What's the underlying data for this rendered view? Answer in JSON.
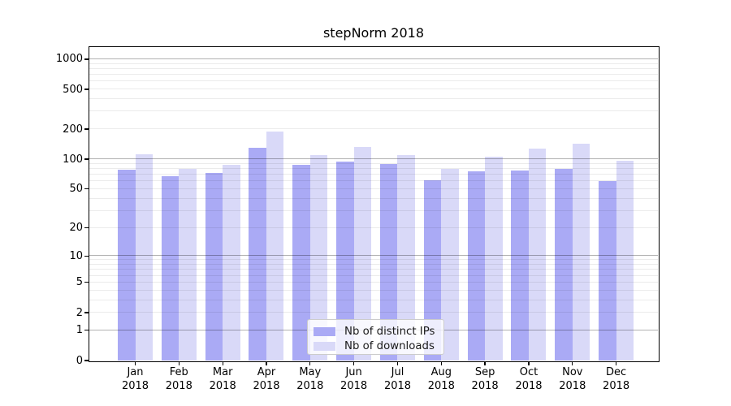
{
  "title": "stepNorm 2018",
  "year": "2018",
  "chart_data": {
    "type": "bar",
    "title": "stepNorm 2018",
    "x_categories": [
      "Jan 2018",
      "Feb 2018",
      "Mar 2018",
      "Apr 2018",
      "May 2018",
      "Jun 2018",
      "Jul 2018",
      "Aug 2018",
      "Sep 2018",
      "Oct 2018",
      "Nov 2018",
      "Dec 2018"
    ],
    "x_tick_months": [
      "Jan",
      "Feb",
      "Mar",
      "Apr",
      "May",
      "Jun",
      "Jul",
      "Aug",
      "Sep",
      "Oct",
      "Nov",
      "Dec"
    ],
    "series": [
      {
        "name": "Nb of distinct IPs",
        "color": "#aaaaf5",
        "values": [
          78,
          67,
          73,
          130,
          88,
          94,
          89,
          61,
          75,
          77,
          80,
          60
        ]
      },
      {
        "name": "Nb of downloads",
        "color": "#d9d9f8",
        "values": [
          113,
          80,
          88,
          190,
          111,
          133,
          111,
          80,
          107,
          128,
          142,
          96
        ]
      }
    ],
    "yscale": "log1p",
    "ylim": [
      0,
      1320
    ],
    "y_ticks": [
      0,
      1,
      2,
      5,
      10,
      20,
      50,
      100,
      200,
      500,
      1000
    ],
    "y_major_grid": [
      1,
      10,
      100,
      1000
    ],
    "y_minor_grid": [
      2,
      3,
      4,
      5,
      6,
      7,
      8,
      9,
      20,
      30,
      40,
      50,
      60,
      70,
      80,
      90,
      200,
      300,
      400,
      500,
      600,
      700,
      800,
      900
    ],
    "grid": "on",
    "legend_position": "lower center",
    "colors": {
      "grid_major": "rgba(0,0,0,0.30)",
      "grid_minor": "rgba(0,0,0,0.08)",
      "axis": "#000000"
    }
  }
}
